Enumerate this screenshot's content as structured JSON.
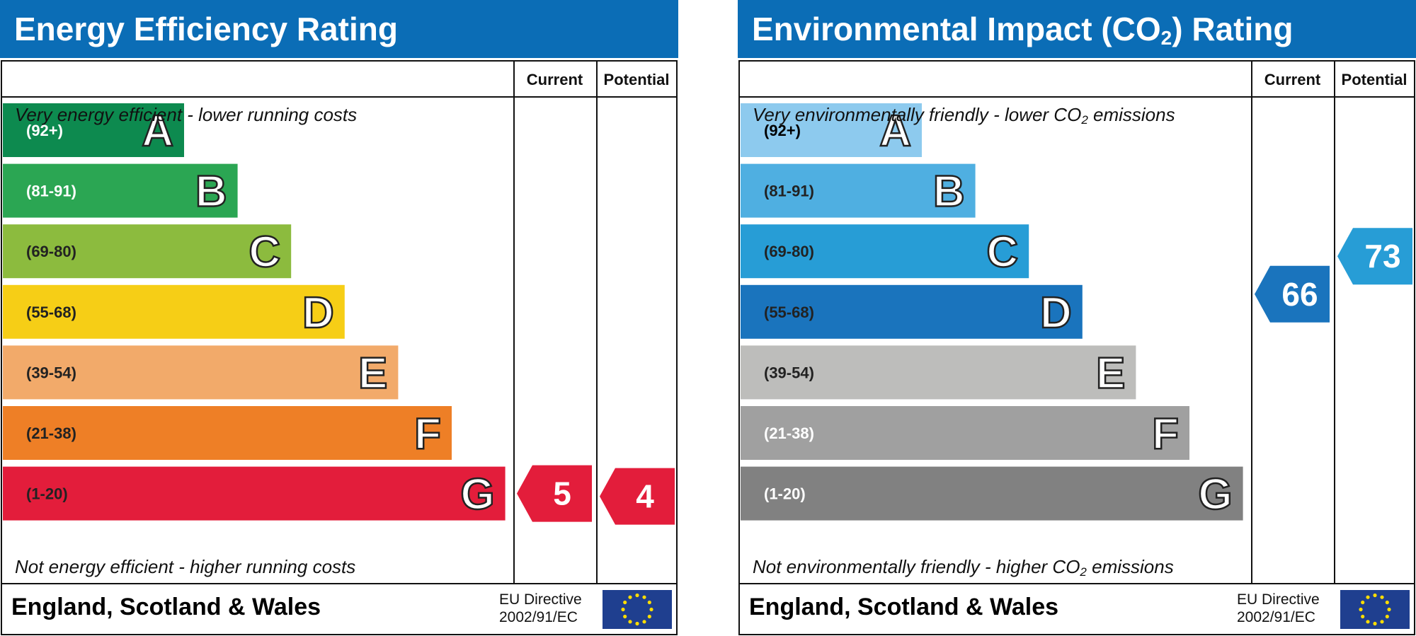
{
  "chart_data": [
    {
      "type": "bar",
      "title": "Energy Efficiency Rating",
      "columns": [
        "Current",
        "Potential"
      ],
      "top_caption": "Very energy efficient - lower running costs",
      "bottom_caption": "Not energy efficient - higher running costs",
      "footer": "England, Scotland & Wales",
      "directive": [
        "EU Directive",
        "2002/91/EC"
      ],
      "bands": [
        {
          "range": "(92+)",
          "letter": "A",
          "color": "#0d8a4f",
          "text_color": "#ffffff"
        },
        {
          "range": "(81-91)",
          "letter": "B",
          "color": "#2ba653",
          "text_color": "#ffffff"
        },
        {
          "range": "(69-80)",
          "letter": "C",
          "color": "#8cbb3e",
          "text_color": "#222222"
        },
        {
          "range": "(55-68)",
          "letter": "D",
          "color": "#f6ce16",
          "text_color": "#222222"
        },
        {
          "range": "(39-54)",
          "letter": "E",
          "color": "#f2aa6a",
          "text_color": "#222222"
        },
        {
          "range": "(21-38)",
          "letter": "F",
          "color": "#ee7f26",
          "text_color": "#222222"
        },
        {
          "range": "(1-20)",
          "letter": "G",
          "color": "#e31d3b",
          "text_color": "#222222"
        }
      ],
      "current": {
        "value": "5",
        "band": "G",
        "color": "#e31d3b"
      },
      "potential": {
        "value": "4",
        "band": "G",
        "color": "#e31d3b"
      }
    },
    {
      "type": "bar",
      "title": "Environmental Impact (CO",
      "title_sub": "2",
      "title_end": ") Rating",
      "columns": [
        "Current",
        "Potential"
      ],
      "top_caption": "Very environmentally friendly - lower CO",
      "top_caption_sub": "2",
      "top_caption_end": " emissions",
      "bottom_caption": "Not environmentally friendly - higher CO",
      "bottom_caption_sub": "2",
      "bottom_caption_end": " emissions",
      "footer": "England, Scotland & Wales",
      "directive": [
        "EU Directive",
        "2002/91/EC"
      ],
      "bands": [
        {
          "range": "(92+)",
          "letter": "A",
          "color": "#8dcaee",
          "text_color": "#000000"
        },
        {
          "range": "(81-91)",
          "letter": "B",
          "color": "#4fafe1",
          "text_color": "#222222"
        },
        {
          "range": "(69-80)",
          "letter": "C",
          "color": "#279dd6",
          "text_color": "#222222"
        },
        {
          "range": "(55-68)",
          "letter": "D",
          "color": "#1a74bd",
          "text_color": "#222222"
        },
        {
          "range": "(39-54)",
          "letter": "E",
          "color": "#bdbdbb",
          "text_color": "#222222"
        },
        {
          "range": "(21-38)",
          "letter": "F",
          "color": "#a0a0a0",
          "text_color": "#ffffff"
        },
        {
          "range": "(1-20)",
          "letter": "G",
          "color": "#818181",
          "text_color": "#ffffff"
        }
      ],
      "current": {
        "value": "66",
        "band": "D",
        "color": "#1a74bd"
      },
      "potential": {
        "value": "73",
        "band": "C",
        "color": "#279dd6"
      }
    }
  ]
}
